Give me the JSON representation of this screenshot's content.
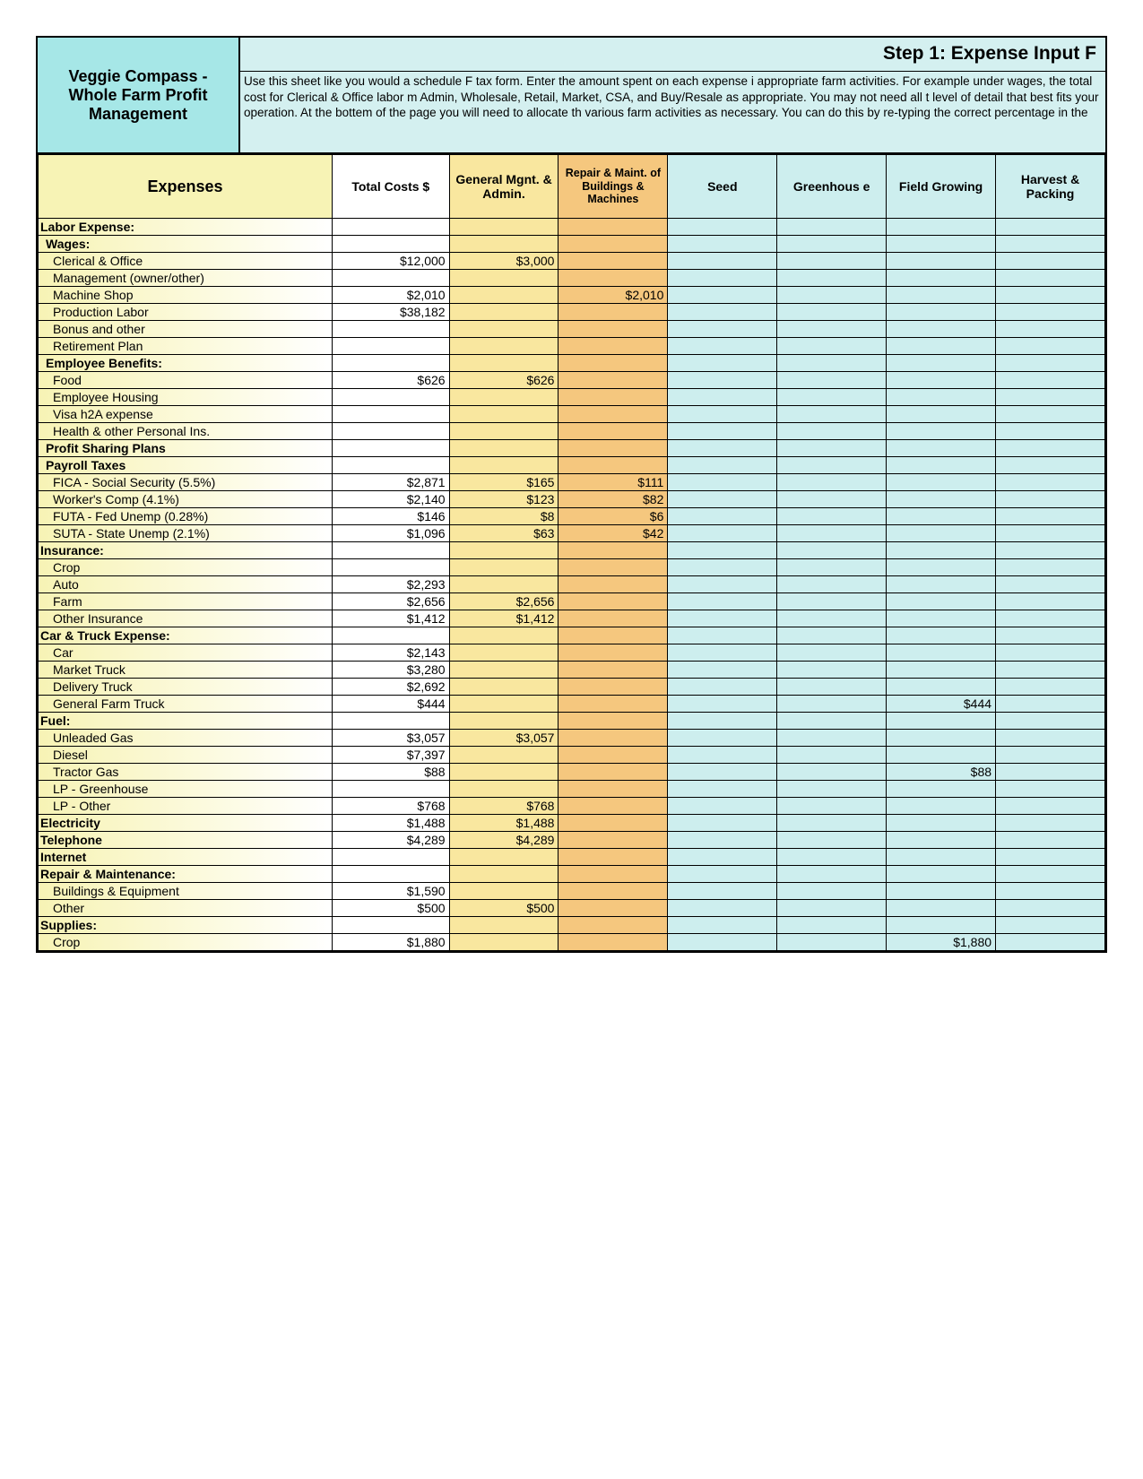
{
  "title": "Veggie Compass - Whole Farm Profit Management",
  "step_title": "Step 1: Expense Input F",
  "step_desc": "Use this sheet like you would a schedule F tax form. Enter the amount spent on each expense i appropriate farm activities. For example under wages, the total cost for Clerical & Office labor m Admin, Wholesale, Retail, Market, CSA, and Buy/Resale as appropriate. You may not need all t level of detail that best fits your operation. At the bottem of the page you will need to allocate th various farm activities as necessary. You can do this by re-typing the correct percentage in the",
  "colors": {
    "header_teal": "#a6e7e7",
    "light_teal": "#d4f0f0",
    "yellow_grad_left": "#f7f3b5",
    "yellow_grad_right": "#ffffff",
    "col_expenses_bg": "#f7f3b5",
    "col_total_bg": "#ffffff",
    "col_general_bg": "#f9e79f",
    "col_repair_bg": "#f5c77e",
    "col_data_bg": "#cdeeee"
  },
  "columns": [
    {
      "key": "expenses",
      "label": "Expenses",
      "bg": "#f7f3b5",
      "big": true
    },
    {
      "key": "total",
      "label": "Total Costs $",
      "bg": "#ffffff"
    },
    {
      "key": "general",
      "label": "General Mgnt. & Admin.",
      "bg": "#f9e79f"
    },
    {
      "key": "repair",
      "label": "Repair & Maint. of Buildings & Machines",
      "bg": "#f5c77e",
      "small": true
    },
    {
      "key": "seed",
      "label": "Seed",
      "bg": "#cdeeee"
    },
    {
      "key": "greenhouse",
      "label": "Greenhous e",
      "bg": "#cdeeee"
    },
    {
      "key": "field",
      "label": "Field Growing",
      "bg": "#cdeeee"
    },
    {
      "key": "harvest",
      "label": "Harvest & Packing",
      "bg": "#cdeeee"
    }
  ],
  "rows": [
    {
      "type": "section",
      "label": "Labor Expense:"
    },
    {
      "type": "sub",
      "label": "Wages:"
    },
    {
      "type": "item",
      "label": "Clerical & Office",
      "total": "$12,000",
      "general": "$3,000"
    },
    {
      "type": "item",
      "label": "Management (owner/other)"
    },
    {
      "type": "item",
      "label": "Machine Shop",
      "total": "$2,010",
      "repair": "$2,010"
    },
    {
      "type": "item",
      "label": "Production Labor",
      "total": "$38,182"
    },
    {
      "type": "item",
      "label": "Bonus and other"
    },
    {
      "type": "item",
      "label": "Retirement Plan"
    },
    {
      "type": "sub",
      "label": "Employee Benefits:"
    },
    {
      "type": "item",
      "label": "Food",
      "total": "$626",
      "general": "$626"
    },
    {
      "type": "item",
      "label": "Employee Housing"
    },
    {
      "type": "item",
      "label": "Visa h2A expense"
    },
    {
      "type": "item",
      "label": "Health & other Personal Ins."
    },
    {
      "type": "sub",
      "label": "Profit Sharing Plans"
    },
    {
      "type": "sub",
      "label": "Payroll Taxes"
    },
    {
      "type": "item",
      "label": "FICA - Social Security (5.5%)",
      "total": "$2,871",
      "general": "$165",
      "repair": "$111"
    },
    {
      "type": "item",
      "label": "Worker's Comp  (4.1%)",
      "total": "$2,140",
      "general": "$123",
      "repair": "$82"
    },
    {
      "type": "item",
      "label": "FUTA - Fed Unemp (0.28%)",
      "total": "$146",
      "general": "$8",
      "repair": "$6"
    },
    {
      "type": "item",
      "label": "SUTA - State Unemp (2.1%)",
      "total": "$1,096",
      "general": "$63",
      "repair": "$42"
    },
    {
      "type": "section",
      "label": "Insurance:"
    },
    {
      "type": "item",
      "label": "Crop"
    },
    {
      "type": "item",
      "label": "Auto",
      "total": "$2,293"
    },
    {
      "type": "item",
      "label": "Farm",
      "total": "$2,656",
      "general": "$2,656"
    },
    {
      "type": "item",
      "label": "Other Insurance",
      "total": "$1,412",
      "general": "$1,412"
    },
    {
      "type": "section",
      "label": "Car & Truck Expense:"
    },
    {
      "type": "item",
      "label": "Car",
      "total": "$2,143"
    },
    {
      "type": "item",
      "label": "Market Truck",
      "total": "$3,280"
    },
    {
      "type": "item",
      "label": "Delivery Truck",
      "total": "$2,692"
    },
    {
      "type": "item",
      "label": "General Farm Truck",
      "total": "$444",
      "field": "$444"
    },
    {
      "type": "section",
      "label": "Fuel:"
    },
    {
      "type": "item",
      "label": "Unleaded Gas",
      "total": "$3,057",
      "general": "$3,057"
    },
    {
      "type": "item",
      "label": "Diesel",
      "total": "$7,397"
    },
    {
      "type": "item",
      "label": "Tractor Gas",
      "total": "$88",
      "field": "$88"
    },
    {
      "type": "item",
      "label": "LP - Greenhouse"
    },
    {
      "type": "item",
      "label": "LP - Other",
      "total": "$768",
      "general": "$768"
    },
    {
      "type": "section",
      "label": "Electricity",
      "total": "$1,488",
      "general": "$1,488"
    },
    {
      "type": "section",
      "label": "Telephone",
      "total": "$4,289",
      "general": "$4,289"
    },
    {
      "type": "section",
      "label": "Internet"
    },
    {
      "type": "section",
      "label": "Repair & Maintenance:"
    },
    {
      "type": "item",
      "label": "Buildings & Equipment",
      "total": "$1,590"
    },
    {
      "type": "item",
      "label": "Other",
      "total": "$500",
      "general": "$500"
    },
    {
      "type": "section",
      "label": "Supplies:"
    },
    {
      "type": "item",
      "label": "Crop",
      "total": "$1,880",
      "field": "$1,880"
    }
  ]
}
